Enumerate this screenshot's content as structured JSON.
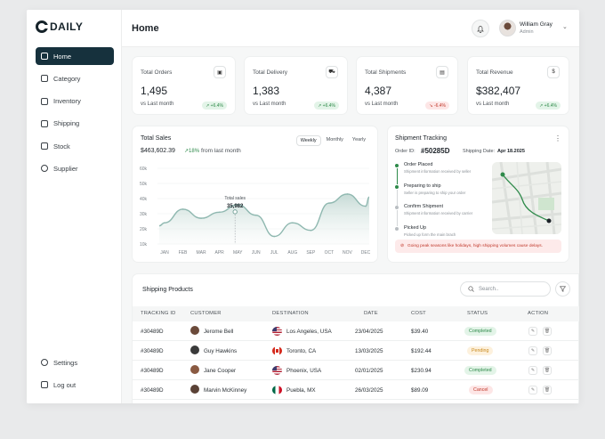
{
  "app": {
    "logo_text": "DAILY"
  },
  "sidebar": {
    "items": [
      {
        "label": "Home",
        "icon": "grid-icon",
        "active": true
      },
      {
        "label": "Category",
        "icon": "category-icon"
      },
      {
        "label": "Inventory",
        "icon": "cart-icon"
      },
      {
        "label": "Shipping",
        "icon": "truck-icon"
      },
      {
        "label": "Stock",
        "icon": "box-icon"
      },
      {
        "label": "Supplier",
        "icon": "user-icon"
      }
    ],
    "bottom": [
      {
        "label": "Settings",
        "icon": "gear-icon"
      },
      {
        "label": "Log out",
        "icon": "logout-icon"
      }
    ]
  },
  "header": {
    "title": "Home",
    "user_name": "William Gray",
    "user_role": "Admin"
  },
  "stats": [
    {
      "label": "Total Orders",
      "value": "1,495",
      "sub": "vs Last month",
      "change": "↗ +6.4%",
      "trend": "up",
      "icon": "box-icon"
    },
    {
      "label": "Total Delivery",
      "value": "1,383",
      "sub": "vs Last month",
      "change": "↗ +6.4%",
      "trend": "up",
      "icon": "truck-icon"
    },
    {
      "label": "Total Shipments",
      "value": "4,387",
      "sub": "vs Last month",
      "change": "↘ -6.4%",
      "trend": "down",
      "icon": "package-icon"
    },
    {
      "label": "Total Revenue",
      "value": "$382,407",
      "sub": "vs Last month",
      "change": "↗ +6.4%",
      "trend": "up",
      "icon": "money-icon"
    }
  ],
  "sales": {
    "title": "Total Sales",
    "value": "$463,602.39",
    "change": "↗18%",
    "from": "from last month",
    "periods": [
      "Weekly",
      "Monthly",
      "Yearly"
    ],
    "active_period": "Weekly",
    "tooltip_label": "Total sales",
    "tooltip_value": "35,982"
  },
  "chart_data": {
    "type": "area",
    "title": "Total Sales",
    "categories": [
      "JAN",
      "FEB",
      "MAR",
      "APR",
      "MAY",
      "JUN",
      "JUL",
      "AUG",
      "SEP",
      "OCT",
      "NOV",
      "DEC"
    ],
    "values": [
      24000,
      33000,
      27000,
      31000,
      36000,
      29000,
      15000,
      24000,
      19000,
      37000,
      43000,
      35000
    ],
    "yticks": [
      "60k",
      "50k",
      "40k",
      "30k",
      "20k",
      "10k"
    ],
    "ylim": [
      10000,
      60000
    ],
    "highlight": {
      "category": "MAY",
      "label": "Total sales",
      "value": 35982
    },
    "color": "#8fb8b0"
  },
  "tracking": {
    "title": "Shipment Tracking",
    "order_label": "Order ID:",
    "order_id": "#50285D",
    "ship_label": "Shipping Date:",
    "ship_date": "Apr 18.2025",
    "steps": [
      {
        "title": "Order Placed",
        "desc": "Shipment information received by seller",
        "done": true
      },
      {
        "title": "Preparing to ship",
        "desc": "Seller is preparing to ship your order",
        "done": true
      },
      {
        "title": "Confirm Shipment",
        "desc": "Shipment information  received by carrier",
        "done": false
      },
      {
        "title": "Picked Up",
        "desc": "Picked up form the main brach",
        "done": false
      }
    ],
    "warning": "Going peak seasons like holidays, high shipping volumes cause delays."
  },
  "table": {
    "title": "Shipping Products",
    "search_placeholder": "Search..",
    "columns": [
      "TRACKING ID",
      "CUSTOMER",
      "DESTINATION",
      "DATE",
      "COST",
      "STATUS",
      "ACTION"
    ],
    "rows": [
      {
        "id": "#30489D",
        "customer": "Jerome Bell",
        "destination": "Los Angeles, USA",
        "flag": "us",
        "date": "23/04/2025",
        "cost": "$39.40",
        "status": "Completed",
        "color": "#6b4a3a"
      },
      {
        "id": "#30489D",
        "customer": "Guy Hawkins",
        "destination": "Toronto, CA",
        "flag": "ca",
        "date": "13/03/2025",
        "cost": "$192.44",
        "status": "Pending",
        "color": "#3a3a3a"
      },
      {
        "id": "#30489D",
        "customer": "Jane Cooper",
        "destination": "Phoenix, USA",
        "flag": "us",
        "date": "02/01/2025",
        "cost": "$230.94",
        "status": "Completed",
        "color": "#8a5a42"
      },
      {
        "id": "#30489D",
        "customer": "Marvin McKinney",
        "destination": "Puebla, MX",
        "flag": "mx",
        "date": "26/03/2025",
        "cost": "$89.09",
        "status": "Cancel",
        "color": "#5a4236"
      }
    ]
  }
}
